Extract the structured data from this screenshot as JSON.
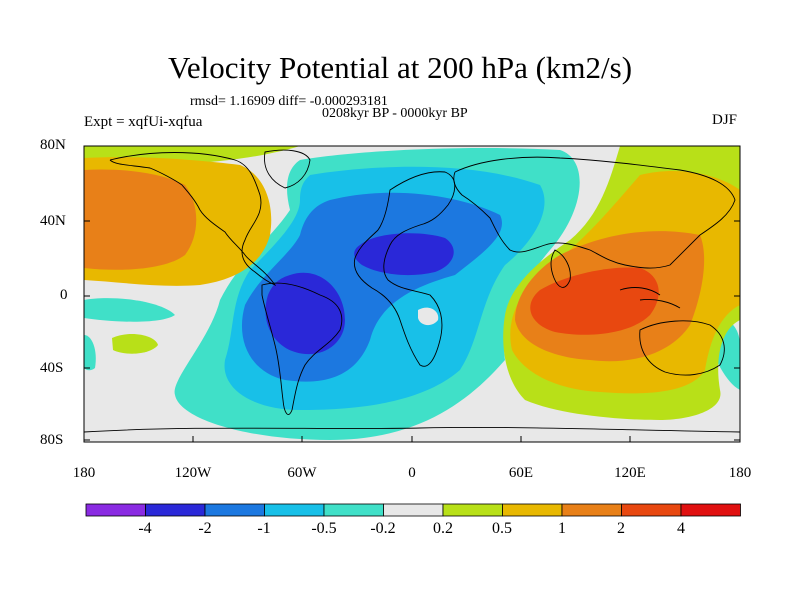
{
  "title": "Velocity Potential at 200 hPa (km2/s)",
  "stats_line": "rmsd= 1.16909 diff= -0.000293181",
  "period": "0208kyr BP - 0000kyr BP",
  "experiment": "Expt = xqfUi-xqfua",
  "season": "DJF",
  "lat_labels": [
    "80N",
    "40N",
    "0",
    "40S",
    "80S"
  ],
  "lon_labels": [
    "180",
    "120W",
    "60W",
    "0",
    "60E",
    "120E",
    "180"
  ],
  "colorbar": {
    "labels": [
      "-4",
      "-2",
      "-1",
      "-0.5",
      "-0.2",
      "0.2",
      "0.5",
      "1",
      "2",
      "4"
    ],
    "colors": [
      "#8a2be2",
      "#2a28d8",
      "#1c78e0",
      "#18c0e8",
      "#40e0c8",
      "#e8e8e8",
      "#b8e018",
      "#e8b800",
      "#e88018",
      "#e84810",
      "#e01010"
    ]
  }
}
